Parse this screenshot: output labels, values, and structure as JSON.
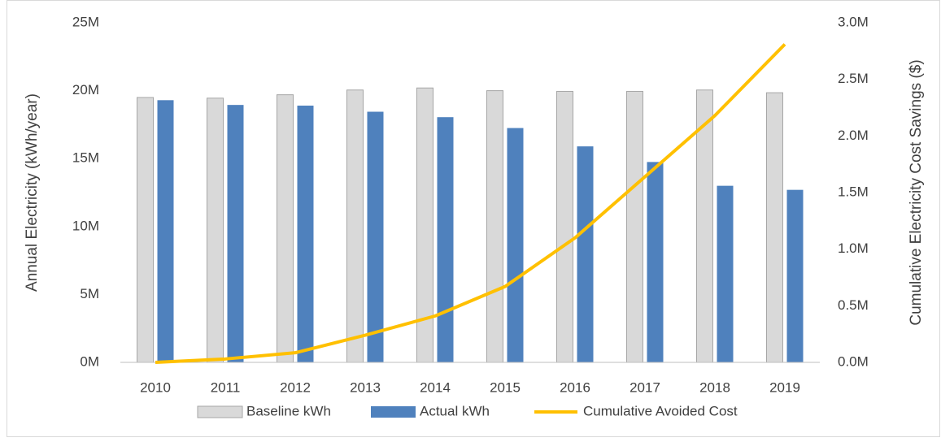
{
  "chart_data": {
    "type": "bar",
    "categories": [
      "2010",
      "2011",
      "2012",
      "2013",
      "2014",
      "2015",
      "2016",
      "2017",
      "2018",
      "2019"
    ],
    "series": [
      {
        "name": "Baseline kWh",
        "color": "#d9d9d9",
        "values": [
          19500000,
          19450000,
          19700000,
          20050000,
          20200000,
          20000000,
          19950000,
          19950000,
          20050000,
          19850000
        ]
      },
      {
        "name": "Actual kWh",
        "color": "#4f81bd",
        "values": [
          19300000,
          18950000,
          18900000,
          18450000,
          18050000,
          17250000,
          15900000,
          14750000,
          13000000,
          12700000
        ]
      },
      {
        "name": "Cumulative Avoided Cost",
        "color": "#ffc000",
        "type": "line",
        "axis": "y2",
        "values": [
          0,
          30000,
          85000,
          240000,
          410000,
          670000,
          1100000,
          1640000,
          2180000,
          2810000
        ]
      }
    ],
    "y_label": "Annual Electricity (kWh/year)",
    "y2_label": "Cumulative Electricity Cost Savings ($)",
    "ylim": [
      0,
      25000000
    ],
    "yticks": [
      {
        "value": 0,
        "label": "0M"
      },
      {
        "value": 5000000,
        "label": "5M"
      },
      {
        "value": 10000000,
        "label": "10M"
      },
      {
        "value": 15000000,
        "label": "15M"
      },
      {
        "value": 20000000,
        "label": "20M"
      },
      {
        "value": 25000000,
        "label": "25M"
      }
    ],
    "y2lim": [
      0,
      3000000
    ],
    "y2ticks": [
      {
        "value": 0,
        "label": "0.0M"
      },
      {
        "value": 500000,
        "label": "0.5M"
      },
      {
        "value": 1000000,
        "label": "1.0M"
      },
      {
        "value": 1500000,
        "label": "1.5M"
      },
      {
        "value": 2000000,
        "label": "2.0M"
      },
      {
        "value": 2500000,
        "label": "2.5M"
      },
      {
        "value": 3000000,
        "label": "3.0M"
      }
    ],
    "grid": false,
    "legend": "bottom"
  }
}
